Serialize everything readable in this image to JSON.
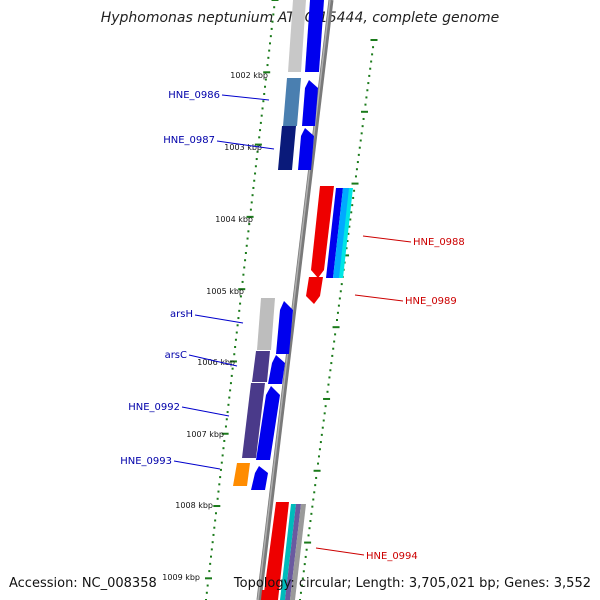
{
  "title": "Hyphomonas neptunium ATCC 15444, complete genome",
  "footer": {
    "accession": "Accession: NC_008358",
    "summary": "Topology: circular; Length: 3,705,021 bp; Genes: 3,552"
  },
  "colors": {
    "backbone": "#808080",
    "tick": "#1a7a1a",
    "forward_label": "#0000aa",
    "reverse_label": "#cc0000",
    "cds_forward": "#0000ee",
    "cds_reverse": "#ee0000"
  },
  "kbp_labels": [
    "1002 kbp",
    "1003 kbp",
    "1004 kbp",
    "1005 kbp",
    "1006 kbp",
    "1007 kbp",
    "1008 kbp",
    "1009 kbp"
  ],
  "gene_labels": {
    "forward": [
      "HNE_0986",
      "HNE_0987",
      "arsH",
      "arsC",
      "HNE_0992",
      "HNE_0993"
    ],
    "reverse": [
      "HNE_0988",
      "HNE_0989",
      "HNE_0994"
    ]
  }
}
